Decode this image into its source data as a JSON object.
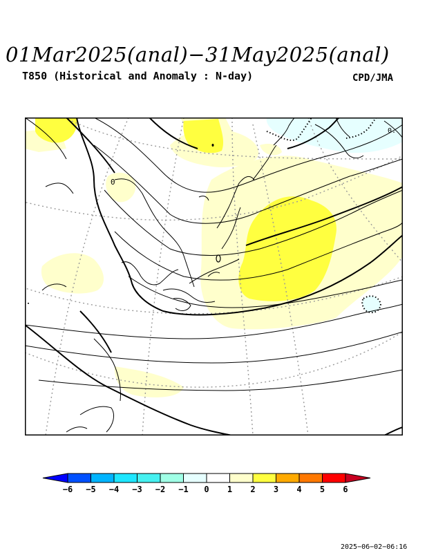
{
  "header": {
    "title": "01Mar2025(anal)−31May2025(anal)",
    "subtitle": "T850 (Historical and Anomaly : N-day)",
    "agency": "CPD/JMA"
  },
  "map": {
    "contour_label_zero": "0",
    "contour_label_zero_b": "0."
  },
  "colorbar": {
    "ticks": [
      "−6",
      "−5",
      "−4",
      "−3",
      "−2",
      "−1",
      "0",
      "1",
      "2",
      "3",
      "4",
      "5",
      "6"
    ],
    "colors": [
      "#0000ff",
      "#0050ff",
      "#00b4ff",
      "#1ee6ff",
      "#46f0f0",
      "#a0ffe6",
      "#e6ffff",
      "#ffffff",
      "#ffffcc",
      "#ffff40",
      "#ffaa00",
      "#ff7800",
      "#ff0000",
      "#c80020"
    ]
  },
  "footer": {
    "timestamp": "2025−06−02−06:16"
  }
}
